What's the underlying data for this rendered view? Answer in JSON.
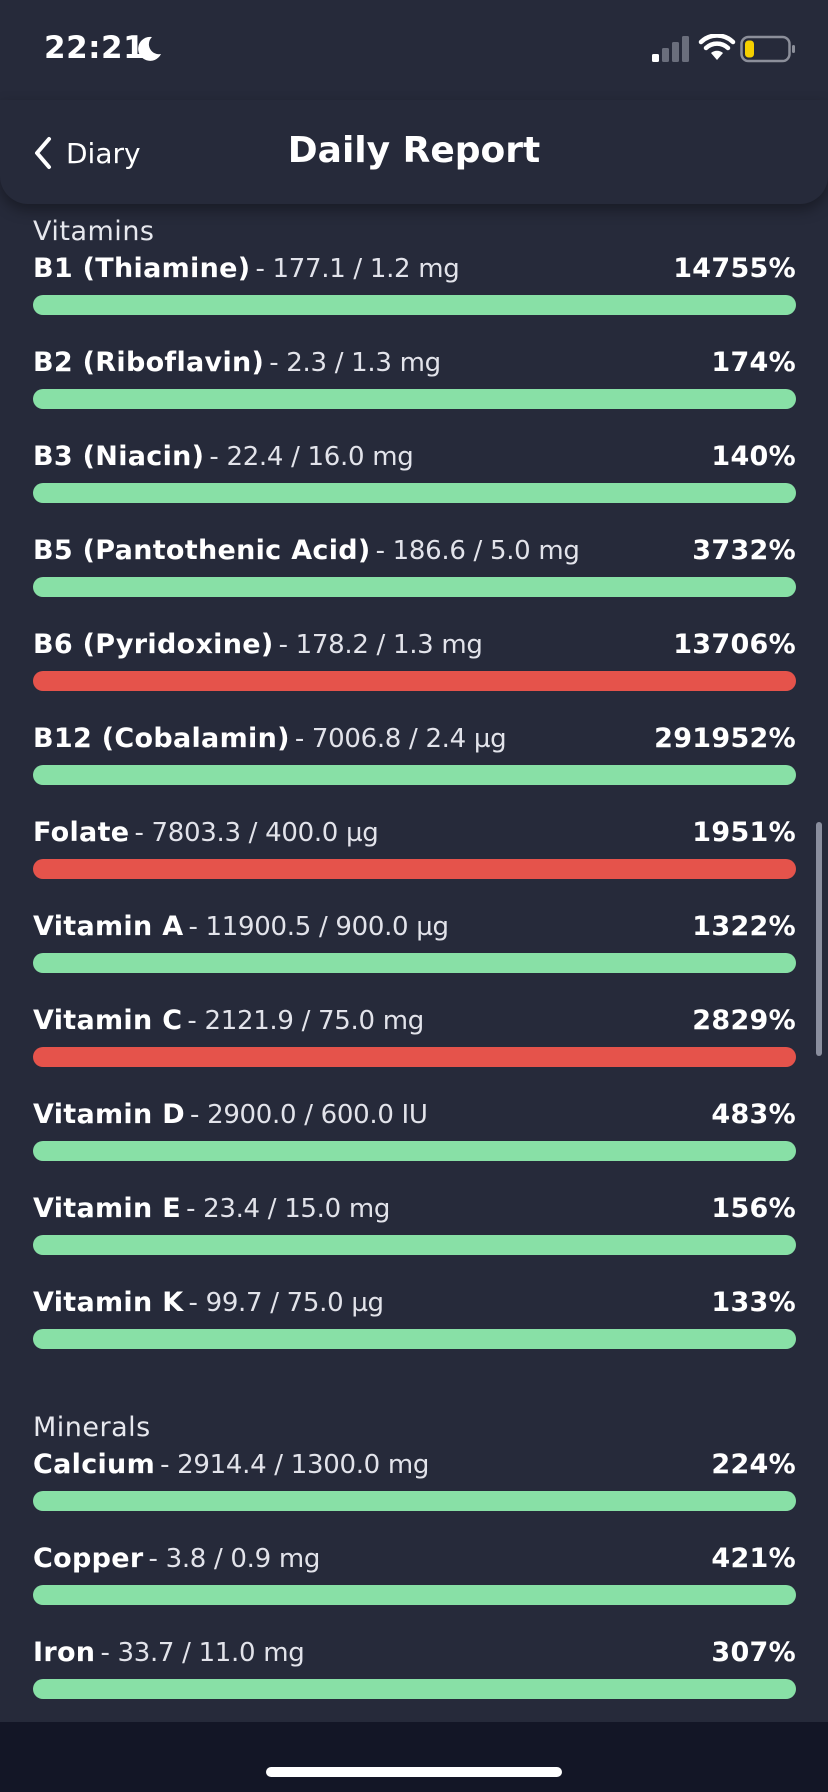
{
  "status_bar": {
    "time": "22:21",
    "icons": [
      "moon-icon",
      "signal-icon",
      "wifi-icon",
      "battery-icon"
    ],
    "battery_level": 0.2,
    "battery_color": "#f5d000"
  },
  "header": {
    "back_label": "Diary",
    "title": "Daily Report"
  },
  "colors": {
    "background": "#262a3a",
    "bar_ok": "#88e0a6",
    "bar_over": "#e5534b"
  },
  "vitamins": {
    "title": "Vitamins",
    "items": [
      {
        "name": "B1 (Thiamine)",
        "amount": "- 177.1 / 1.2 mg",
        "percent": "14755%",
        "status": "ok"
      },
      {
        "name": "B2 (Riboflavin)",
        "amount": "- 2.3 / 1.3 mg",
        "percent": "174%",
        "status": "ok"
      },
      {
        "name": "B3 (Niacin)",
        "amount": "- 22.4 / 16.0 mg",
        "percent": "140%",
        "status": "ok"
      },
      {
        "name": "B5 (Pantothenic Acid)",
        "amount": "- 186.6 / 5.0 mg",
        "percent": "3732%",
        "status": "ok"
      },
      {
        "name": "B6 (Pyridoxine)",
        "amount": "- 178.2 / 1.3 mg",
        "percent": "13706%",
        "status": "over"
      },
      {
        "name": "B12 (Cobalamin)",
        "amount": "- 7006.8 / 2.4 µg",
        "percent": "291952%",
        "status": "ok"
      },
      {
        "name": "Folate",
        "amount": "- 7803.3 / 400.0 µg",
        "percent": "1951%",
        "status": "over"
      },
      {
        "name": "Vitamin A",
        "amount": "- 11900.5 / 900.0 µg",
        "percent": "1322%",
        "status": "ok"
      },
      {
        "name": "Vitamin C",
        "amount": "- 2121.9 / 75.0 mg",
        "percent": "2829%",
        "status": "over"
      },
      {
        "name": "Vitamin D",
        "amount": "- 2900.0 / 600.0 IU",
        "percent": "483%",
        "status": "ok"
      },
      {
        "name": "Vitamin E",
        "amount": "- 23.4 / 15.0 mg",
        "percent": "156%",
        "status": "ok"
      },
      {
        "name": "Vitamin K",
        "amount": "- 99.7 / 75.0 µg",
        "percent": "133%",
        "status": "ok"
      }
    ]
  },
  "minerals": {
    "title": "Minerals",
    "items": [
      {
        "name": "Calcium",
        "amount": "- 2914.4 / 1300.0 mg",
        "percent": "224%",
        "status": "ok"
      },
      {
        "name": "Copper",
        "amount": "- 3.8 / 0.9 mg",
        "percent": "421%",
        "status": "ok"
      },
      {
        "name": "Iron",
        "amount": "- 33.7 / 11.0 mg",
        "percent": "307%",
        "status": "ok"
      }
    ]
  }
}
